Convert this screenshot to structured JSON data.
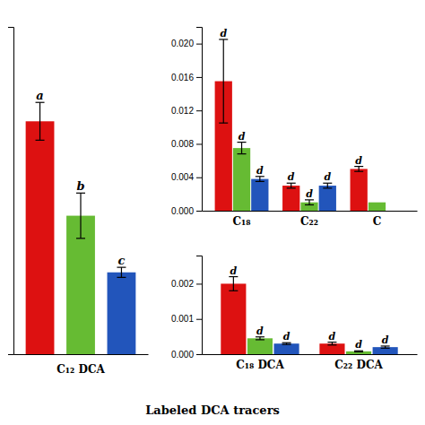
{
  "chart_data": [
    {
      "type": "bar",
      "categories": [
        null,
        null,
        null
      ],
      "values": [
        0.0185,
        0.011,
        0.0065
      ],
      "errors": [
        0.0015,
        0.0018,
        0.0004
      ],
      "annotations": [
        "a",
        "b",
        "c"
      ],
      "colors": [
        "#dd1111",
        "#66bb33",
        "#2255bb"
      ],
      "xlabel": "C₁₂ DCA",
      "ylim": [
        0,
        0.026
      ],
      "tick_labels": false
    },
    {
      "type": "bar",
      "categories": [
        "C₁₈",
        "C₂₂",
        "C"
      ],
      "series": [
        {
          "color": "#dd1111",
          "values": [
            0.0155,
            0.003,
            0.005
          ],
          "errors": [
            0.005,
            0.0003,
            0.0003
          ],
          "annotations": [
            "d",
            "d",
            "d"
          ]
        },
        {
          "color": "#66bb33",
          "values": [
            0.0075,
            0.001,
            0.001
          ],
          "errors": [
            0.0007,
            0.0003,
            null
          ],
          "annotations": [
            "d",
            "d",
            null
          ]
        },
        {
          "color": "#2255bb",
          "values": [
            0.0038,
            0.003,
            null
          ],
          "errors": [
            0.0003,
            0.0003,
            null
          ],
          "annotations": [
            "d",
            "d",
            null
          ]
        }
      ],
      "ylim": [
        0,
        0.022
      ],
      "yticks": [
        {
          "value": 0,
          "label": "0.000"
        },
        {
          "value": 0.004,
          "label": "0.004"
        },
        {
          "value": 0.008,
          "label": "0.008"
        },
        {
          "value": 0.012,
          "label": "0.012"
        },
        {
          "value": 0.016,
          "label": "0.016"
        },
        {
          "value": 0.02,
          "label": "0.020"
        }
      ]
    },
    {
      "type": "bar",
      "categories": [
        "C₁₈ DCA",
        "C₂₂ DCA"
      ],
      "series": [
        {
          "color": "#dd1111",
          "values": [
            0.002,
            0.0003
          ],
          "errors": [
            0.0002,
            4e-05
          ],
          "annotations": [
            "d",
            "d"
          ]
        },
        {
          "color": "#66bb33",
          "values": [
            0.00045,
            8e-05
          ],
          "errors": [
            4e-05,
            1.5e-05
          ],
          "annotations": [
            "d",
            "d"
          ]
        },
        {
          "color": "#2255bb",
          "values": [
            0.0003,
            0.0002
          ],
          "errors": [
            2.5e-05,
            3e-05
          ],
          "annotations": [
            "d",
            "d"
          ]
        }
      ],
      "xlabel": "Labeled DCA tracers",
      "ylim": [
        0,
        0.0028
      ],
      "yticks": [
        {
          "value": 0,
          "label": "0.000"
        },
        {
          "value": 0.001,
          "label": "0.001"
        },
        {
          "value": 0.002,
          "label": "0.002"
        }
      ]
    }
  ]
}
